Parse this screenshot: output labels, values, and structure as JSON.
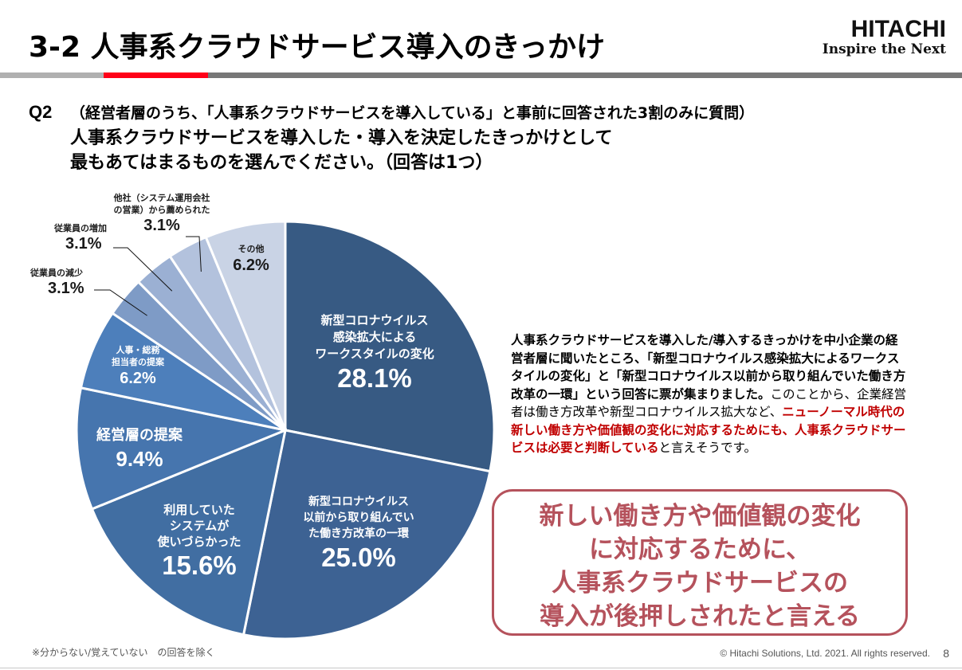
{
  "header": {
    "title": "3-2  人事系クラウドサービス導入のきっかけ",
    "logo_brand": "HITACHI",
    "logo_tagline": "Inspire the Next",
    "accent_colors": {
      "bar_left": "#b0b0b0",
      "bar_mid": "#ff0018",
      "bar_right": "#777777"
    }
  },
  "question": {
    "number": "Q2",
    "condition": "（経営者層のうち、「人事系クラウドサービスを導入している」と事前に回答された3割のみに質問）",
    "line1": "人事系クラウドサービスを導入した・導入を決定したきっかけとして",
    "line2": "最もあてはまるものを選んでください。（回答は1つ）"
  },
  "chart_data": {
    "type": "pie",
    "title": "",
    "unit": "%",
    "start": "top",
    "direction": "clockwise",
    "slices": [
      {
        "label_lines": [
          "新型コロナウイルス",
          "感染拡大による",
          "ワークスタイルの変化"
        ],
        "value": 28.1,
        "value_label": "28.1%",
        "color": "#375a83"
      },
      {
        "label_lines": [
          "新型コロナウイルス",
          "以前から取り組んでい",
          "た働き方改革の一環"
        ],
        "value": 25.0,
        "value_label": "25.0%",
        "color": "#3d6293"
      },
      {
        "label_lines": [
          "利用していた",
          "システムが",
          "使いづらかった"
        ],
        "value": 15.6,
        "value_label": "15.6%",
        "color": "#416ea2"
      },
      {
        "label_lines": [
          "経営層の提案"
        ],
        "value": 9.4,
        "value_label": "9.4%",
        "color": "#4675ae"
      },
      {
        "label_lines": [
          "人事・総務",
          "担当者の提案"
        ],
        "value": 6.2,
        "value_label": "6.2%",
        "color": "#4d7fbb"
      },
      {
        "label_lines": [
          "従業員の減少"
        ],
        "value": 3.1,
        "value_label": "3.1%",
        "color": "#7e9bc6"
      },
      {
        "label_lines": [
          "従業員の増加"
        ],
        "value": 3.1,
        "value_label": "3.1%",
        "color": "#9bb0d3"
      },
      {
        "label_lines": [
          "他社（システム運用会社",
          "の営業）から薦められた"
        ],
        "value": 3.1,
        "value_label": "3.1%",
        "color": "#b3c2dd"
      },
      {
        "label_lines": [
          "その他"
        ],
        "value": 6.2,
        "value_label": "6.2%",
        "color": "#c9d3e5"
      }
    ]
  },
  "summary": {
    "part1": "人事系クラウドサービスを導入した/導入するきっかけを中小企業の経営者層に聞いたところ、「新型コロナウイルス感染拡大によるワークスタイルの変化」と「新型コロナウイルス以前から取り組んでいた働き方改革の一環」という回答に票が集まりました。",
    "part2": "このことから、企業経営者は働き方改革や新型コロナウイルス拡大など、",
    "part3_highlight": "ニューノーマル時代の新しい働き方や価値観の変化に対応するためにも、人事系クラウドサービスは必要と判断している",
    "part4": "と言えそうです。",
    "highlight_color": "#c00000"
  },
  "callout": {
    "lines": [
      "新しい働き方や価値観の変化",
      "に対応するために、",
      "人事系クラウドサービスの",
      "導入が後押しされたと言える"
    ],
    "color": "#b5525c"
  },
  "footer": {
    "note": "※分からない/覚えていない　の回答を除く",
    "copyright": "© Hitachi Solutions, Ltd. 2021. All rights reserved.",
    "page_number": "8"
  }
}
